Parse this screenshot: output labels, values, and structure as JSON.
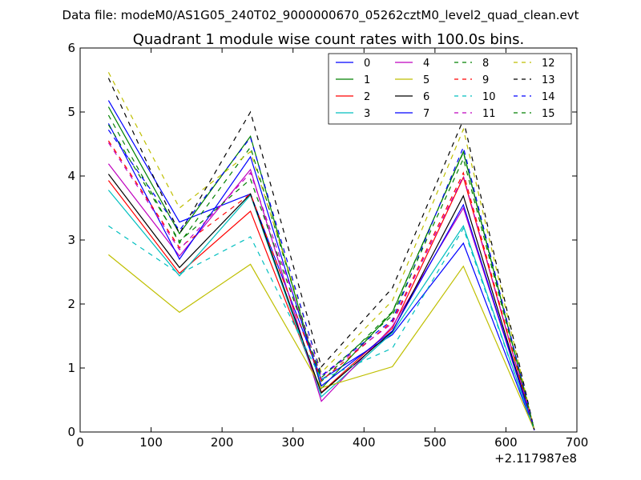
{
  "suptitle": "Data file: modeM0/AS1G05_240T02_9000000670_05262cztM0_level2_quad_clean.evt",
  "chart_data": {
    "type": "line",
    "title": "Quadrant 1 module wise count rates with 100.0s bins.",
    "xlabel": "",
    "ylabel": "",
    "x_offset_label": "+2.117987e8",
    "xlim": [
      0,
      700
    ],
    "ylim": [
      0,
      6
    ],
    "xticks": [
      0,
      100,
      200,
      300,
      400,
      500,
      600,
      700
    ],
    "yticks": [
      0,
      1,
      2,
      3,
      4,
      5,
      6
    ],
    "grid": false,
    "legend_position": "top-right",
    "legend_columns": 4,
    "x": [
      40,
      140,
      240,
      340,
      440,
      540,
      640
    ],
    "series": [
      {
        "name": "0",
        "color": "#0000ff",
        "dash": "solid",
        "values": [
          5.18,
          3.28,
          3.72,
          0.82,
          1.52,
          2.95,
          0.03
        ]
      },
      {
        "name": "1",
        "color": "#008000",
        "dash": "solid",
        "values": [
          5.08,
          3.1,
          4.62,
          0.68,
          1.87,
          4.38,
          0.03
        ]
      },
      {
        "name": "2",
        "color": "#ff0000",
        "dash": "solid",
        "values": [
          3.93,
          2.48,
          3.45,
          0.62,
          1.62,
          3.98,
          0.03
        ]
      },
      {
        "name": "3",
        "color": "#00bfbf",
        "dash": "solid",
        "values": [
          3.78,
          2.44,
          3.7,
          0.55,
          1.55,
          3.22,
          0.03
        ]
      },
      {
        "name": "4",
        "color": "#bf00bf",
        "dash": "solid",
        "values": [
          4.19,
          2.75,
          4.1,
          0.48,
          1.65,
          3.5,
          0.03
        ]
      },
      {
        "name": "5",
        "color": "#bfbf00",
        "dash": "solid",
        "values": [
          2.77,
          1.87,
          2.62,
          0.69,
          1.02,
          2.59,
          0.03
        ]
      },
      {
        "name": "6",
        "color": "#000000",
        "dash": "solid",
        "values": [
          4.03,
          2.57,
          3.72,
          0.61,
          1.57,
          3.69,
          0.03
        ]
      },
      {
        "name": "7",
        "color": "#0000ff",
        "dash": "solid",
        "values": [
          4.82,
          2.7,
          4.3,
          0.72,
          1.58,
          3.55,
          0.03
        ]
      },
      {
        "name": "8",
        "color": "#008000",
        "dash": "dashed",
        "values": [
          4.95,
          2.95,
          4.45,
          0.79,
          1.88,
          4.37,
          0.03
        ]
      },
      {
        "name": "9",
        "color": "#ff0000",
        "dash": "dashed",
        "values": [
          4.55,
          2.88,
          3.72,
          0.8,
          1.73,
          4.05,
          0.03
        ]
      },
      {
        "name": "10",
        "color": "#00bfbf",
        "dash": "dashed",
        "values": [
          3.22,
          2.47,
          3.05,
          0.82,
          1.31,
          3.18,
          0.03
        ]
      },
      {
        "name": "11",
        "color": "#bf00bf",
        "dash": "dashed",
        "values": [
          4.52,
          2.85,
          4.05,
          0.87,
          1.7,
          4.0,
          0.03
        ]
      },
      {
        "name": "12",
        "color": "#bfbf00",
        "dash": "dashed",
        "values": [
          5.62,
          3.5,
          4.38,
          0.93,
          2.05,
          4.73,
          0.03
        ]
      },
      {
        "name": "13",
        "color": "#000000",
        "dash": "dashed",
        "values": [
          5.53,
          3.1,
          5.0,
          1.02,
          2.25,
          4.88,
          0.03
        ]
      },
      {
        "name": "14",
        "color": "#0000ff",
        "dash": "dashed",
        "values": [
          4.72,
          3.15,
          4.6,
          0.88,
          1.75,
          4.45,
          0.03
        ]
      },
      {
        "name": "15",
        "color": "#008000",
        "dash": "dashed",
        "values": [
          4.8,
          2.98,
          3.95,
          0.85,
          1.82,
          4.27,
          0.03
        ]
      }
    ]
  }
}
